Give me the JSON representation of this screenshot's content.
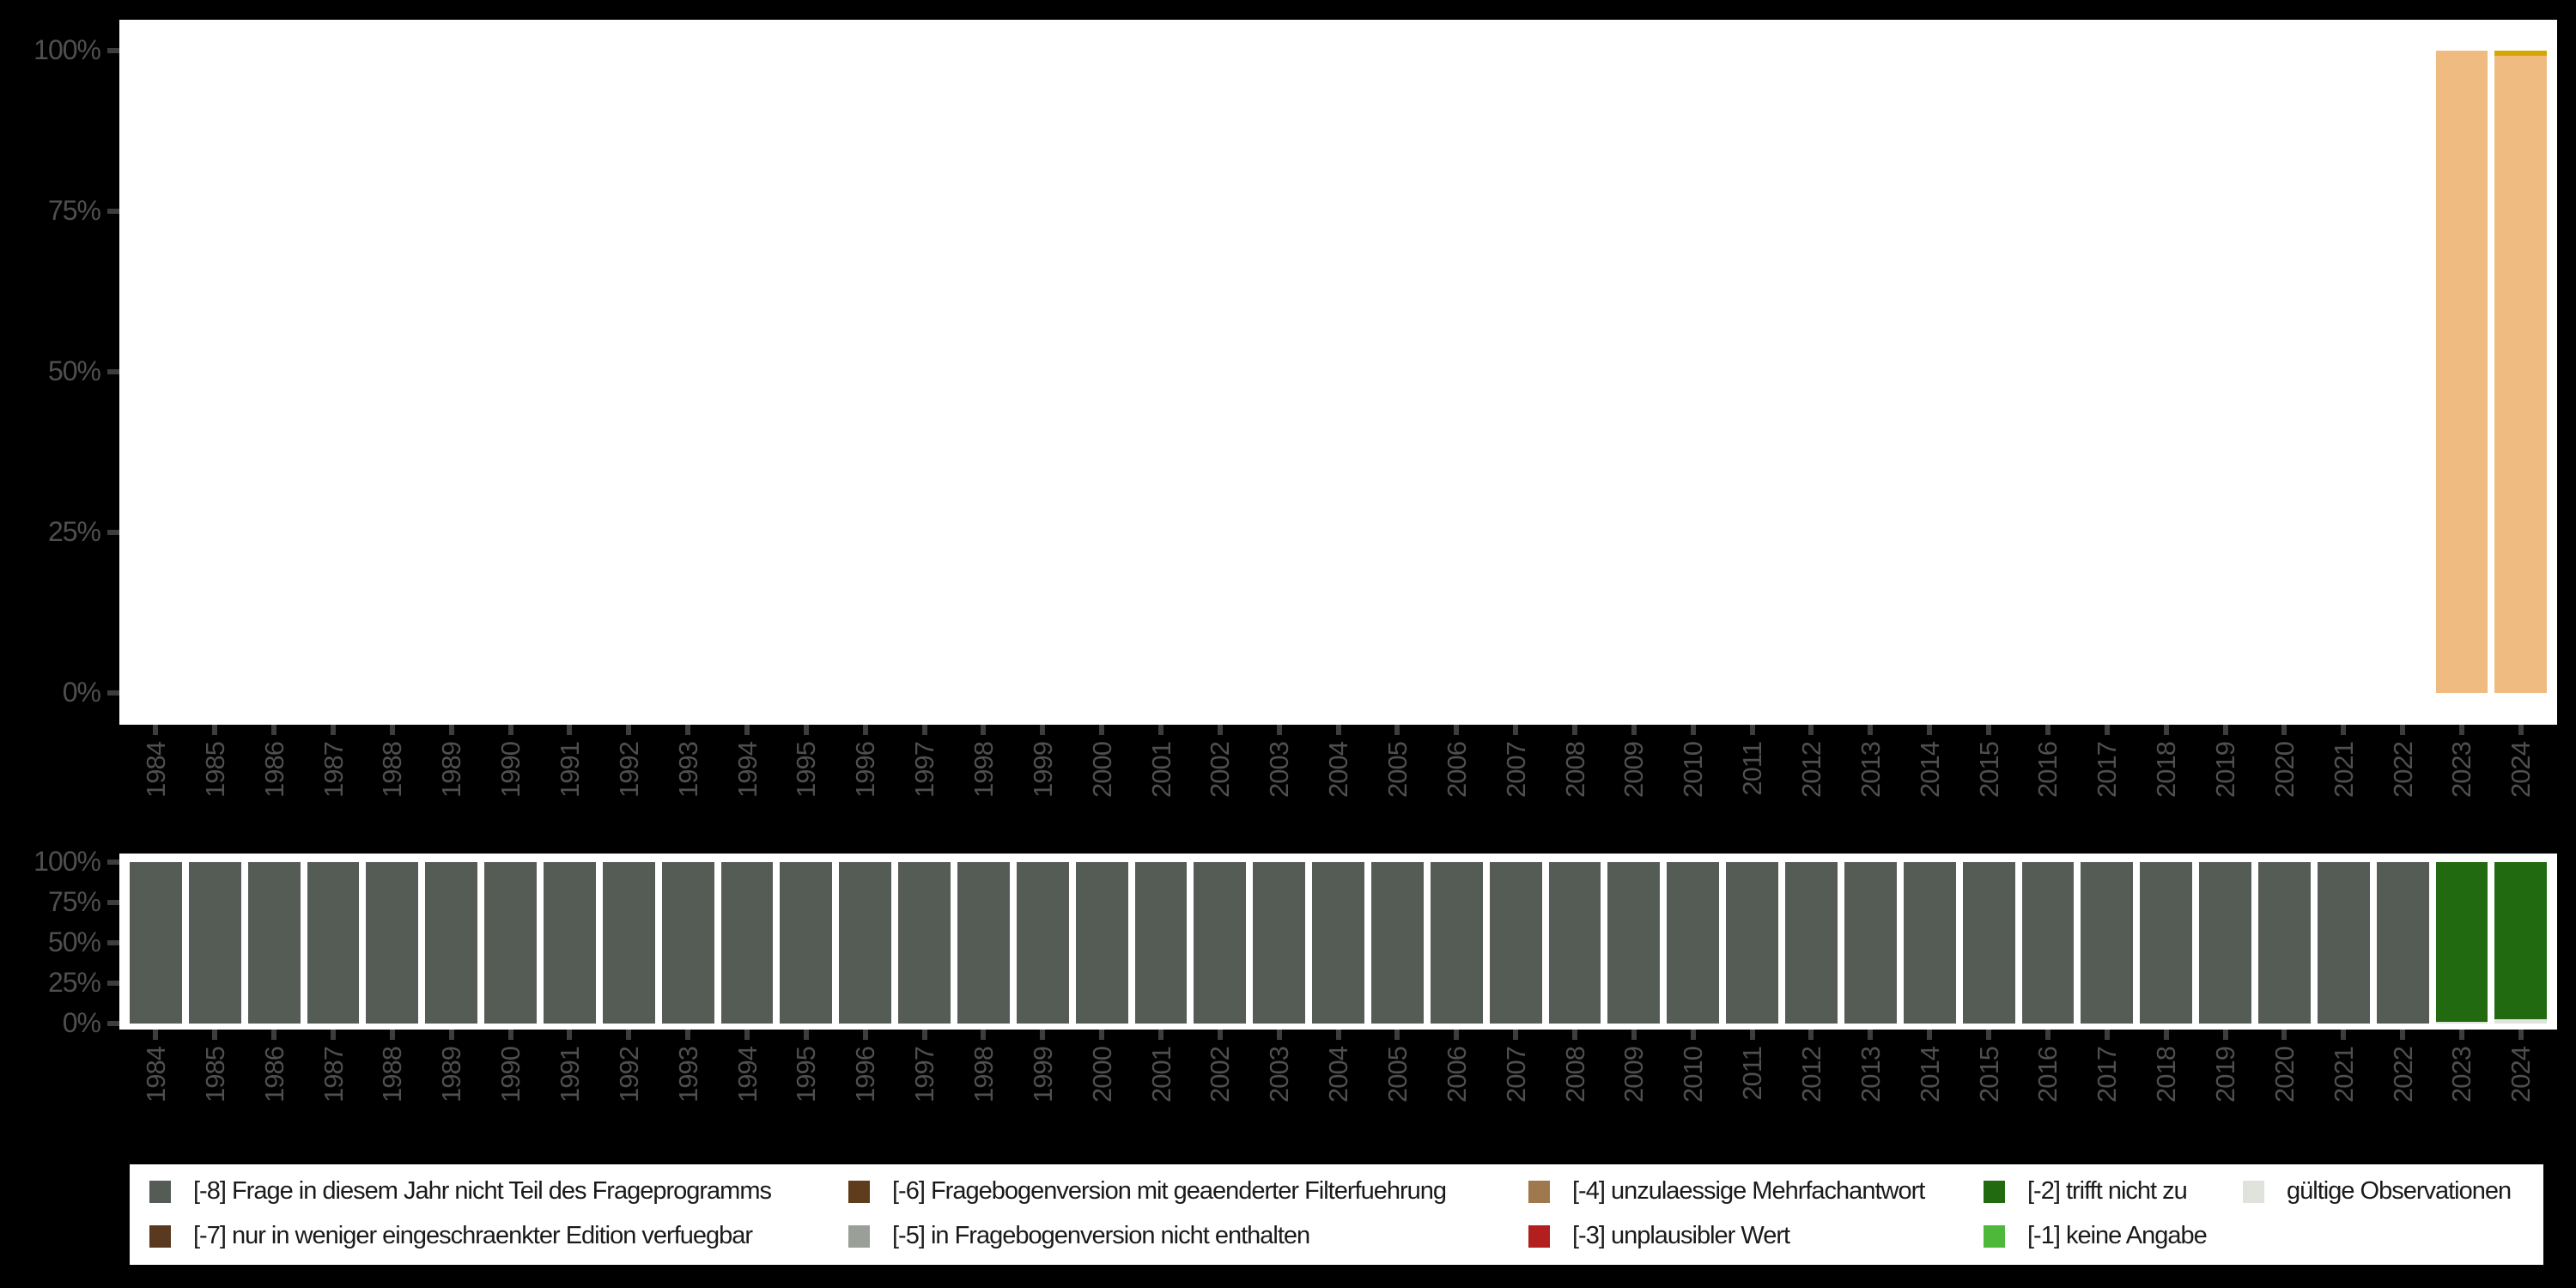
{
  "palette": {
    "page_background": "#000000",
    "plot_background": "#ffffff",
    "axis_text_color": "#4f4f4f",
    "axis_tick_color": "#3d3d3d",
    "legend_background": "#ffffff",
    "legend_text_color": "#1a1a1a"
  },
  "legend": {
    "items": [
      {
        "label": "[-8] Frage in diesem Jahr nicht Teil des Frageprogramms",
        "color": "#555c55"
      },
      {
        "label": "[-7] nur in weniger eingeschraenkter Edition verfuegbar",
        "color": "#593a20"
      },
      {
        "label": "[-6] Fragebogenversion mit geaenderter Filterfuehrung",
        "color": "#5f3c1c"
      },
      {
        "label": "[-5] in Fragebogenversion nicht enthalten",
        "color": "#9aa098"
      },
      {
        "label": "[-4] unzulaessige Mehrfachantwort",
        "color": "#a0784e"
      },
      {
        "label": "[-3] unplausibler Wert",
        "color": "#b31f1f"
      },
      {
        "label": "[-2] trifft nicht zu",
        "color": "#226a0f"
      },
      {
        "label": "[-1] keine Angabe",
        "color": "#4db83a"
      },
      {
        "label": "gültige Observationen",
        "color": "#dfe3dc"
      }
    ]
  },
  "chart_data": [
    {
      "type": "bar",
      "stacked": true,
      "title": "",
      "xlabel": "",
      "ylabel": "",
      "ylim": [
        0,
        100
      ],
      "grid": false,
      "yticks": [
        "100%",
        "75%",
        "50%",
        "25%",
        "0%"
      ],
      "categories": [
        "1984",
        "1985",
        "1986",
        "1987",
        "1988",
        "1989",
        "1990",
        "1991",
        "1992",
        "1993",
        "1994",
        "1995",
        "1996",
        "1997",
        "1998",
        "1999",
        "2000",
        "2001",
        "2002",
        "2003",
        "2004",
        "2005",
        "2006",
        "2007",
        "2008",
        "2009",
        "2010",
        "2011",
        "2012",
        "2013",
        "2014",
        "2015",
        "2016",
        "2017",
        "2018",
        "2019",
        "2020",
        "2021",
        "2022",
        "2023",
        "2024"
      ],
      "series": [
        {
          "name": "answer-category-orange",
          "color": "#f0bb80",
          "values": [
            0,
            0,
            0,
            0,
            0,
            0,
            0,
            0,
            0,
            0,
            0,
            0,
            0,
            0,
            0,
            0,
            0,
            0,
            0,
            0,
            0,
            0,
            0,
            0,
            0,
            0,
            0,
            0,
            0,
            0,
            0,
            0,
            0,
            0,
            0,
            0,
            0,
            0,
            0,
            100,
            99.2
          ]
        },
        {
          "name": "answer-category-gold",
          "color": "#d4a800",
          "values": [
            0,
            0,
            0,
            0,
            0,
            0,
            0,
            0,
            0,
            0,
            0,
            0,
            0,
            0,
            0,
            0,
            0,
            0,
            0,
            0,
            0,
            0,
            0,
            0,
            0,
            0,
            0,
            0,
            0,
            0,
            0,
            0,
            0,
            0,
            0,
            0,
            0,
            0,
            0,
            0,
            0.8
          ]
        }
      ]
    },
    {
      "type": "bar",
      "stacked": true,
      "title": "",
      "xlabel": "",
      "ylabel": "",
      "ylim": [
        0,
        100
      ],
      "grid": false,
      "yticks": [
        "100%",
        "75%",
        "50%",
        "25%",
        "0%"
      ],
      "categories": [
        "1984",
        "1985",
        "1986",
        "1987",
        "1988",
        "1989",
        "1990",
        "1991",
        "1992",
        "1993",
        "1994",
        "1995",
        "1996",
        "1997",
        "1998",
        "1999",
        "2000",
        "2001",
        "2002",
        "2003",
        "2004",
        "2005",
        "2006",
        "2007",
        "2008",
        "2009",
        "2010",
        "2011",
        "2012",
        "2013",
        "2014",
        "2015",
        "2016",
        "2017",
        "2018",
        "2019",
        "2020",
        "2021",
        "2022",
        "2023",
        "2024"
      ],
      "series": [
        {
          "name": "gültige Observationen",
          "color": "#dfe3dc",
          "values": [
            0,
            0,
            0,
            0,
            0,
            0,
            0,
            0,
            0,
            0,
            0,
            0,
            0,
            0,
            0,
            0,
            0,
            0,
            0,
            0,
            0,
            0,
            0,
            0,
            0,
            0,
            0,
            0,
            0,
            0,
            0,
            0,
            0,
            0,
            0,
            0,
            0,
            0,
            0,
            1,
            2.5
          ]
        },
        {
          "name": "[-2] trifft nicht zu",
          "color": "#226a0f",
          "values": [
            0,
            0,
            0,
            0,
            0,
            0,
            0,
            0,
            0,
            0,
            0,
            0,
            0,
            0,
            0,
            0,
            0,
            0,
            0,
            0,
            0,
            0,
            0,
            0,
            0,
            0,
            0,
            0,
            0,
            0,
            0,
            0,
            0,
            0,
            0,
            0,
            0,
            0,
            0,
            99,
            97.5
          ]
        },
        {
          "name": "[-8] Frage in diesem Jahr nicht Teil des Frageprogramms",
          "color": "#555c55",
          "values": [
            100,
            100,
            100,
            100,
            100,
            100,
            100,
            100,
            100,
            100,
            100,
            100,
            100,
            100,
            100,
            100,
            100,
            100,
            100,
            100,
            100,
            100,
            100,
            100,
            100,
            100,
            100,
            100,
            100,
            100,
            100,
            100,
            100,
            100,
            100,
            100,
            100,
            100,
            100,
            0,
            0
          ]
        }
      ]
    }
  ]
}
